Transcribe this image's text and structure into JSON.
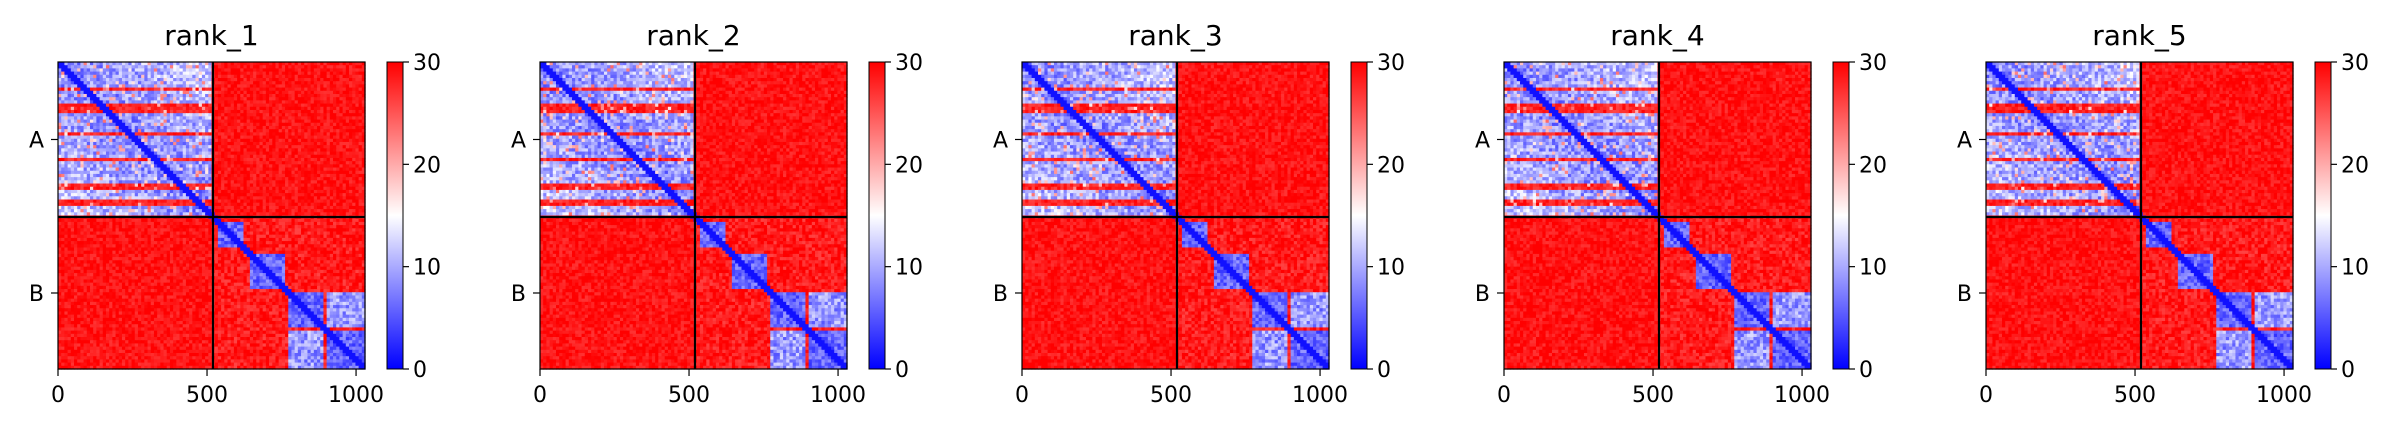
{
  "chart_data": [
    {
      "type": "heatmap",
      "title": "rank_1",
      "x_ticks": [
        0,
        500,
        1000
      ],
      "y_labels": [
        "A",
        "B"
      ],
      "xlim": [
        0,
        1030
      ],
      "ylim": [
        0,
        1030
      ],
      "chain_boundary": 520,
      "colorbar": {
        "min": 0,
        "max": 30,
        "ticks": [
          0,
          10,
          20,
          30
        ],
        "colors": [
          "#0000ff",
          "#ffffff",
          "#ff0000"
        ]
      }
    },
    {
      "type": "heatmap",
      "title": "rank_2",
      "x_ticks": [
        0,
        500,
        1000
      ],
      "y_labels": [
        "A",
        "B"
      ],
      "xlim": [
        0,
        1030
      ],
      "ylim": [
        0,
        1030
      ],
      "chain_boundary": 520,
      "colorbar": {
        "min": 0,
        "max": 30,
        "ticks": [
          0,
          10,
          20,
          30
        ],
        "colors": [
          "#0000ff",
          "#ffffff",
          "#ff0000"
        ]
      }
    },
    {
      "type": "heatmap",
      "title": "rank_3",
      "x_ticks": [
        0,
        500,
        1000
      ],
      "y_labels": [
        "A",
        "B"
      ],
      "xlim": [
        0,
        1030
      ],
      "ylim": [
        0,
        1030
      ],
      "chain_boundary": 520,
      "colorbar": {
        "min": 0,
        "max": 30,
        "ticks": [
          0,
          10,
          20,
          30
        ],
        "colors": [
          "#0000ff",
          "#ffffff",
          "#ff0000"
        ]
      }
    },
    {
      "type": "heatmap",
      "title": "rank_4",
      "x_ticks": [
        0,
        500,
        1000
      ],
      "y_labels": [
        "A",
        "B"
      ],
      "xlim": [
        0,
        1030
      ],
      "ylim": [
        0,
        1030
      ],
      "chain_boundary": 520,
      "colorbar": {
        "min": 0,
        "max": 30,
        "ticks": [
          0,
          10,
          20,
          30
        ],
        "colors": [
          "#0000ff",
          "#ffffff",
          "#ff0000"
        ]
      }
    },
    {
      "type": "heatmap",
      "title": "rank_5",
      "x_ticks": [
        0,
        500,
        1000
      ],
      "y_labels": [
        "A",
        "B"
      ],
      "xlim": [
        0,
        1030
      ],
      "ylim": [
        0,
        1030
      ],
      "chain_boundary": 520,
      "colorbar": {
        "min": 0,
        "max": 30,
        "ticks": [
          0,
          10,
          20,
          30
        ],
        "colors": [
          "#0000ff",
          "#ffffff",
          "#ff0000"
        ]
      }
    }
  ]
}
